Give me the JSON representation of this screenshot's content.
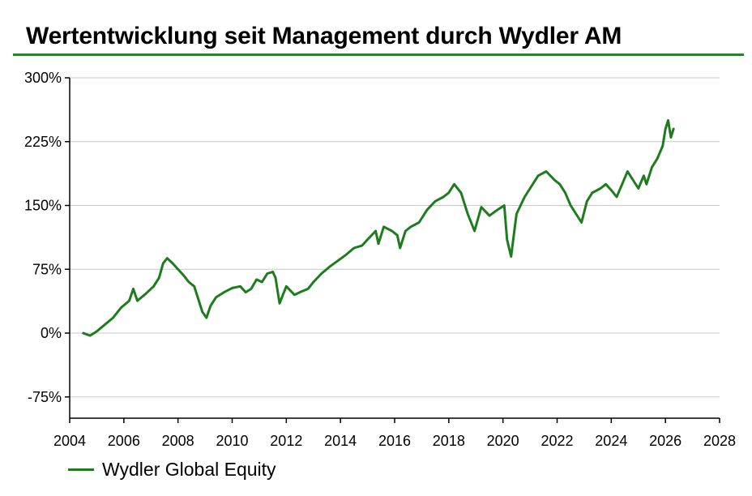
{
  "title": "Wertentwicklung seit Management durch Wydler AM",
  "colors": {
    "accent_rule": "#2e7d32",
    "series": "#1e7b1e",
    "grid": "#c8c8c8",
    "axis": "#000000"
  },
  "chart_data": {
    "type": "line",
    "title": "Wertentwicklung seit Management durch Wydler AM",
    "xlabel": "",
    "ylabel": "",
    "xlim": [
      2004,
      2028
    ],
    "ylim": [
      -100,
      300
    ],
    "x_ticks": [
      "2004",
      "2006",
      "2008",
      "2010",
      "2012",
      "2014",
      "2016",
      "2018",
      "2020",
      "2022",
      "2024",
      "2026",
      "2028"
    ],
    "y_ticks": [
      {
        "value": 300,
        "label": "300%"
      },
      {
        "value": 225,
        "label": "225%"
      },
      {
        "value": 150,
        "label": "150%"
      },
      {
        "value": 75,
        "label": "75%"
      },
      {
        "value": 0,
        "label": "0%"
      },
      {
        "value": -75,
        "label": "-75%"
      }
    ],
    "grid": "horizontal",
    "legend_position": "bottom-left",
    "series": [
      {
        "name": "Wydler Global Equity",
        "x": [
          2004.5,
          2004.75,
          2005.0,
          2005.3,
          2005.6,
          2005.9,
          2006.2,
          2006.35,
          2006.5,
          2006.8,
          2007.1,
          2007.3,
          2007.45,
          2007.6,
          2007.8,
          2008.0,
          2008.2,
          2008.4,
          2008.6,
          2008.75,
          2008.9,
          2009.05,
          2009.2,
          2009.4,
          2009.7,
          2010.0,
          2010.3,
          2010.5,
          2010.7,
          2010.9,
          2011.1,
          2011.3,
          2011.5,
          2011.6,
          2011.75,
          2012.0,
          2012.3,
          2012.5,
          2012.8,
          2013.0,
          2013.3,
          2013.6,
          2013.9,
          2014.2,
          2014.5,
          2014.8,
          2015.0,
          2015.3,
          2015.4,
          2015.6,
          2015.9,
          2016.1,
          2016.2,
          2016.4,
          2016.6,
          2016.9,
          2017.2,
          2017.5,
          2017.8,
          2018.0,
          2018.2,
          2018.45,
          2018.7,
          2018.95,
          2019.2,
          2019.5,
          2019.8,
          2020.05,
          2020.15,
          2020.3,
          2020.5,
          2020.8,
          2021.0,
          2021.3,
          2021.6,
          2021.9,
          2022.1,
          2022.3,
          2022.5,
          2022.7,
          2022.9,
          2023.1,
          2023.3,
          2023.6,
          2023.8,
          2024.0,
          2024.2,
          2024.4,
          2024.6,
          2024.8,
          2025.0,
          2025.2,
          2025.3,
          2025.5,
          2025.7,
          2025.9,
          2026.0,
          2026.1,
          2026.2,
          2026.3
        ],
        "y": [
          0,
          -3,
          2,
          10,
          18,
          30,
          38,
          52,
          38,
          46,
          55,
          65,
          82,
          88,
          82,
          75,
          68,
          60,
          55,
          40,
          25,
          18,
          32,
          42,
          48,
          53,
          55,
          48,
          52,
          63,
          60,
          70,
          72,
          65,
          35,
          55,
          45,
          48,
          52,
          60,
          70,
          78,
          85,
          92,
          100,
          103,
          110,
          120,
          105,
          125,
          120,
          115,
          100,
          120,
          125,
          130,
          145,
          155,
          160,
          165,
          175,
          165,
          140,
          120,
          148,
          138,
          145,
          150,
          110,
          90,
          140,
          160,
          170,
          185,
          190,
          180,
          175,
          165,
          150,
          140,
          130,
          155,
          165,
          170,
          175,
          168,
          160,
          175,
          190,
          180,
          170,
          185,
          175,
          195,
          205,
          220,
          240,
          250,
          230,
          240
        ]
      }
    ]
  }
}
